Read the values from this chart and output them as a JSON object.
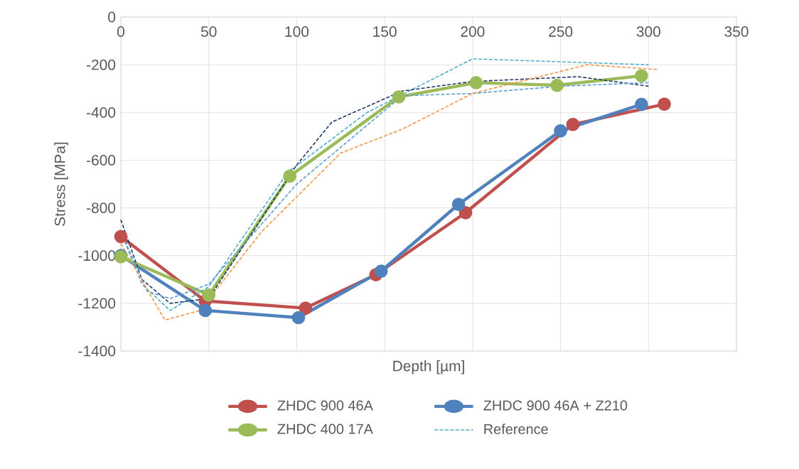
{
  "chart_data": {
    "type": "line",
    "xlabel": "Depth [µm]",
    "ylabel": "Stress [MPa]",
    "xlim": [
      0,
      350
    ],
    "xticks": [
      0,
      50,
      100,
      150,
      200,
      250,
      300,
      350
    ],
    "ylim": [
      -1400,
      0
    ],
    "yticks": [
      -1400,
      -1200,
      -1000,
      -800,
      -600,
      -400,
      -200,
      0
    ],
    "grid": true,
    "legend": "bottom",
    "series": [
      {
        "name": "ZHDC 900 46A",
        "color": "#c0504d",
        "marker": "circle",
        "line_style": "solid",
        "x": [
          0,
          48,
          105,
          145,
          196,
          257,
          309
        ],
        "values": [
          -920,
          -1190,
          -1220,
          -1080,
          -820,
          -450,
          -365
        ]
      },
      {
        "name": "ZHDC 900 46A + Z210",
        "color": "#4f81bd",
        "marker": "circle",
        "line_style": "solid",
        "x": [
          0,
          48,
          101,
          148,
          192,
          250,
          296
        ],
        "values": [
          -1000,
          -1230,
          -1260,
          -1065,
          -785,
          -477,
          -366
        ]
      },
      {
        "name": "ZHDC 400 17A",
        "color": "#9bbb59",
        "marker": "circle",
        "line_style": "solid",
        "x": [
          0,
          50,
          96,
          158,
          202,
          248,
          296
        ],
        "values": [
          -1005,
          -1165,
          -667,
          -335,
          -275,
          -286,
          -246
        ]
      },
      {
        "name": "Reference",
        "color": "#4bacc6",
        "marker": "none",
        "line_style": "dashed",
        "x": [
          0,
          12,
          28,
          50,
          95,
          140,
          200,
          300
        ],
        "values": [
          -900,
          -1120,
          -1230,
          -1130,
          -650,
          -400,
          -175,
          -200
        ]
      },
      {
        "color": "#1f3864",
        "marker": "none",
        "line_style": "dashed",
        "x": [
          0,
          12,
          28,
          50,
          100,
          120,
          160,
          200,
          260,
          300
        ],
        "values": [
          -850,
          -1100,
          -1200,
          -1180,
          -620,
          -440,
          -310,
          -270,
          -250,
          -290
        ]
      },
      {
        "color": "#5b9bd5",
        "marker": "none",
        "line_style": "dashed",
        "x": [
          0,
          15,
          28,
          50,
          100,
          160,
          200,
          250,
          300
        ],
        "values": [
          -900,
          -1150,
          -1180,
          -1120,
          -700,
          -330,
          -320,
          -290,
          -275
        ]
      },
      {
        "color": "#f79646",
        "marker": "none",
        "line_style": "dashed",
        "x": [
          0,
          25,
          45,
          80,
          125,
          160,
          200,
          265,
          305
        ],
        "values": [
          -950,
          -1270,
          -1230,
          -900,
          -570,
          -470,
          -320,
          -200,
          -220
        ]
      }
    ]
  }
}
